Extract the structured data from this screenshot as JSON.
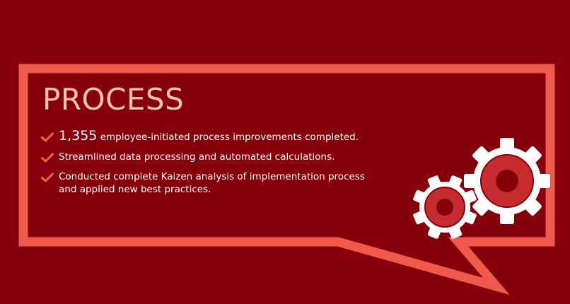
{
  "colors": {
    "background": "#85000b",
    "frame": "#ef5a4c",
    "title": "#f6c2b3",
    "text": "#ffffff",
    "check": "#ef5a4c",
    "gear_outer": "#ffffff",
    "gear_inner": "#c62b2f",
    "gear_hole": "#85000b"
  },
  "title": "PROCESS",
  "items": [
    {
      "icon": "check-icon",
      "highlight": "1,355",
      "text": " employee-initiated process improvements completed."
    },
    {
      "icon": "check-icon",
      "text": "Streamlined data processing and automated calculations."
    },
    {
      "icon": "check-icon",
      "text": "Conducted complete Kaizen analysis of implementation process and applied new best practices."
    }
  ],
  "illustration": [
    "gear-icon",
    "gear-icon"
  ]
}
